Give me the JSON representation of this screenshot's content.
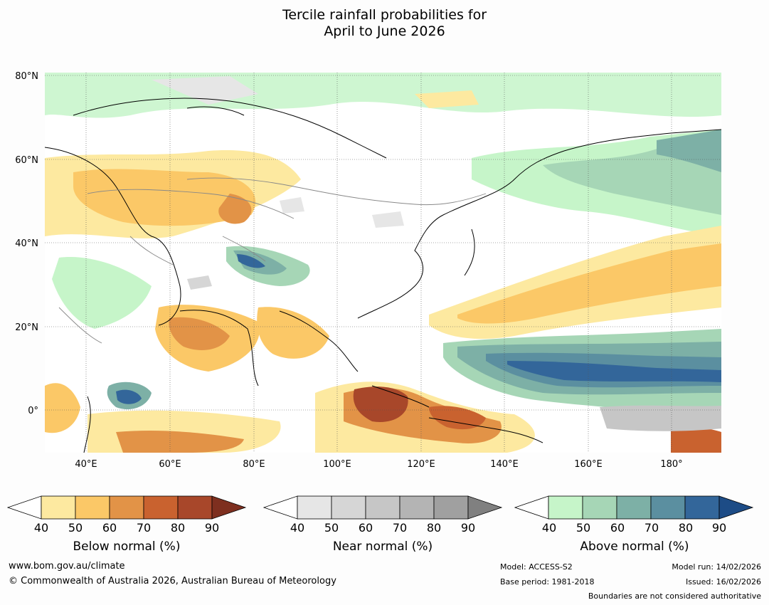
{
  "title_lines": [
    "Tercile rainfall probabilities for",
    "April to June 2026"
  ],
  "lat_labels": [
    "80°N",
    "60°N",
    "40°N",
    "20°N",
    "0°"
  ],
  "lon_labels": [
    "40°E",
    "60°E",
    "80°E",
    "100°E",
    "120°E",
    "140°E",
    "160°E",
    "180°"
  ],
  "colorbars": [
    {
      "label": "Below normal (%)",
      "ticks": [
        "40",
        "50",
        "60",
        "70",
        "80",
        "90"
      ],
      "colors": [
        "#fde9a0",
        "#fbc867",
        "#e29347",
        "#c9622f",
        "#a8472a"
      ],
      "extend_color": "#7e2f1f"
    },
    {
      "label": "Near normal (%)",
      "ticks": [
        "40",
        "50",
        "60",
        "70",
        "80",
        "90"
      ],
      "colors": [
        "#e6e6e6",
        "#d6d6d6",
        "#c6c6c6",
        "#b4b4b4",
        "#a0a0a0"
      ],
      "extend_color": "#808080"
    },
    {
      "label": "Above normal (%)",
      "ticks": [
        "40",
        "50",
        "60",
        "70",
        "80",
        "90"
      ],
      "colors": [
        "#c6f5c9",
        "#a6d6b6",
        "#7db0a6",
        "#5b8fa0",
        "#33669a"
      ],
      "extend_color": "#1d4c86"
    }
  ],
  "footer": {
    "website": "www.bom.gov.au/climate",
    "copyright": "© Commonwealth of Australia 2026, Australian Bureau of Meteorology",
    "model": "Model: ACCESS-S2",
    "base_period": "Base period: 1981-2018",
    "model_run": "Model run: 14/02/2026",
    "issued": "Issued: 16/02/2026",
    "disclaimer": "Boundaries are not considered authoritative"
  }
}
